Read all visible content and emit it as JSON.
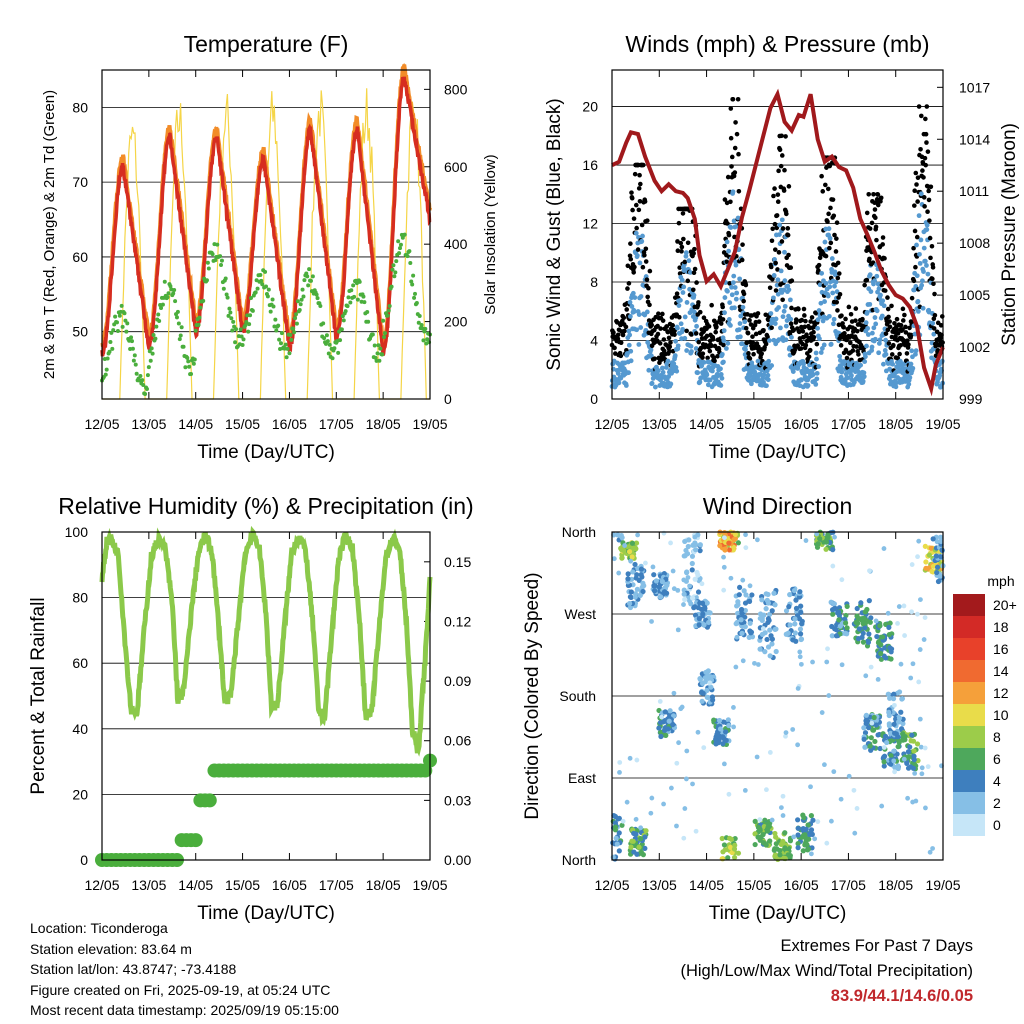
{
  "chart_data": [
    {
      "id": "temperature",
      "type": "line",
      "title": "Temperature (F)",
      "xlabel": "Time (Day/UTC)",
      "ylabel": "2m & 9m T (Red, Orange) & 2m Td (Green)",
      "ylabel_right": "Solar Insolation (Yellow)",
      "x_ticks": [
        "12/05",
        "13/05",
        "14/05",
        "15/05",
        "16/05",
        "17/05",
        "18/05",
        "19/05"
      ],
      "ylim": [
        41,
        85
      ],
      "y_ticks": [
        50,
        60,
        70,
        80
      ],
      "ylim_right": [
        0,
        850
      ],
      "y_ticks_right": [
        0,
        200,
        400,
        600,
        800
      ],
      "grid": true,
      "daily_t2m": [
        {
          "day": "12/05",
          "min": 47,
          "max": 72
        },
        {
          "day": "13/05",
          "min": 48,
          "max": 76
        },
        {
          "day": "14/05",
          "min": 50,
          "max": 76
        },
        {
          "day": "15/05",
          "min": 50,
          "max": 73
        },
        {
          "day": "16/05",
          "min": 48,
          "max": 77
        },
        {
          "day": "17/05",
          "min": 49,
          "max": 77
        },
        {
          "day": "18/05",
          "min": 47,
          "max": 84
        }
      ],
      "daily_dewpoint": [
        {
          "day": "12/05",
          "min": 43,
          "max": 52
        },
        {
          "day": "13/05",
          "min": 45,
          "max": 56
        },
        {
          "day": "14/05",
          "min": 49,
          "max": 61
        },
        {
          "day": "15/05",
          "min": 48,
          "max": 57
        },
        {
          "day": "16/05",
          "min": 47,
          "max": 57
        },
        {
          "day": "17/05",
          "min": 47,
          "max": 56
        },
        {
          "day": "18/05",
          "min": 49,
          "max": 62
        }
      ],
      "solar_daily_peak": [
        750,
        800,
        810,
        815,
        820,
        820,
        825
      ],
      "series": [
        {
          "name": "2m T",
          "color": "#d62d20"
        },
        {
          "name": "9m T",
          "color": "#f28c28"
        },
        {
          "name": "2m Td",
          "color": "#4aae3c"
        },
        {
          "name": "Solar Insolation",
          "color": "#f5d547"
        }
      ]
    },
    {
      "id": "winds",
      "type": "scatter",
      "title": "Winds (mph) & Pressure (mb)",
      "xlabel": "Time (Day/UTC)",
      "ylabel": "Sonic Wind & Gust (Blue, Black)",
      "ylabel_right": "Station Pressure (Maroon)",
      "x_ticks": [
        "12/05",
        "13/05",
        "14/05",
        "15/05",
        "16/05",
        "17/05",
        "18/05",
        "19/05"
      ],
      "ylim": [
        0,
        22.5
      ],
      "y_ticks": [
        0,
        4,
        8,
        12,
        16,
        20
      ],
      "ylim_right": [
        999,
        1018
      ],
      "y_ticks_right": [
        999,
        1002,
        1005,
        1008,
        1011,
        1014,
        1017
      ],
      "grid": true,
      "pressure": {
        "x_days": [
          0,
          0.15,
          0.3,
          0.4,
          0.55,
          0.7,
          0.9,
          1.05,
          1.2,
          1.35,
          1.5,
          1.6,
          1.75,
          1.85,
          2.0,
          2.15,
          2.3,
          2.45,
          2.6,
          2.75,
          2.9,
          3.05,
          3.2,
          3.35,
          3.5,
          3.65,
          3.8,
          3.95,
          4.05,
          4.2,
          4.35,
          4.5,
          4.65,
          4.8,
          4.95,
          5.1,
          5.25,
          5.4,
          5.55,
          5.7,
          5.85,
          6.0,
          6.15,
          6.3,
          6.45,
          6.6,
          6.75,
          6.85,
          7.0
        ],
        "values": [
          1012.5,
          1012.7,
          1013.8,
          1014.4,
          1014.3,
          1013.0,
          1011.6,
          1011.0,
          1011.4,
          1011.0,
          1010.9,
          1010.6,
          1009.4,
          1007.3,
          1005.8,
          1006.2,
          1005.5,
          1006.5,
          1007.5,
          1009.5,
          1011.0,
          1012.6,
          1014.2,
          1015.8,
          1016.6,
          1015.0,
          1014.5,
          1015.4,
          1015.3,
          1016.6,
          1014.0,
          1012.7,
          1013.0,
          1012.4,
          1012.2,
          1011.2,
          1009.4,
          1008.5,
          1007.5,
          1006.4,
          1005.6,
          1005.0,
          1004.8,
          1004.3,
          1003.2,
          1000.8,
          999.6,
          1001.0,
          1002.0
        ],
        "color": "#a0191c"
      },
      "daily_gust_max": [
        16,
        13,
        20.5,
        18,
        16.5,
        14,
        20
      ],
      "series": [
        {
          "name": "Sonic Wind",
          "color": "#5599d0"
        },
        {
          "name": "Gust",
          "color": "#000000"
        },
        {
          "name": "Station Pressure",
          "color": "#a0191c"
        }
      ]
    },
    {
      "id": "humidity",
      "type": "line",
      "title": "Relative Humidity (%) & Precipitation (in)",
      "xlabel": "Time (Day/UTC)",
      "ylabel": "Percent & Total Rainfall",
      "x_ticks": [
        "12/05",
        "13/05",
        "14/05",
        "15/05",
        "16/05",
        "17/05",
        "18/05",
        "19/05"
      ],
      "ylim": [
        0,
        100
      ],
      "y_ticks": [
        0,
        20,
        40,
        60,
        80,
        100
      ],
      "ylim_right": [
        0,
        0.165
      ],
      "y_ticks_right": [
        "0.00",
        "0.03",
        "0.06",
        "0.09",
        "0.12",
        "0.15"
      ],
      "grid": true,
      "rh": {
        "x_days": [
          0,
          0.1,
          0.2,
          0.35,
          0.5,
          0.62,
          0.75,
          0.9,
          1.05,
          1.2,
          1.35,
          1.5,
          1.62,
          1.75,
          1.9,
          2.05,
          2.2,
          2.35,
          2.5,
          2.62,
          2.75,
          2.9,
          3.05,
          3.2,
          3.35,
          3.5,
          3.62,
          3.75,
          3.9,
          4.05,
          4.2,
          4.35,
          4.5,
          4.62,
          4.75,
          4.9,
          5.05,
          5.2,
          5.35,
          5.5,
          5.62,
          5.75,
          5.9,
          6.05,
          6.2,
          6.35,
          6.5,
          6.62,
          6.75,
          6.9,
          7.0
        ],
        "values": [
          86,
          97,
          98,
          93,
          65,
          46,
          45,
          70,
          92,
          98,
          95,
          78,
          48,
          52,
          75,
          93,
          99,
          94,
          70,
          48,
          50,
          72,
          93,
          99,
          96,
          75,
          46,
          48,
          72,
          94,
          99,
          94,
          72,
          46,
          43,
          68,
          92,
          99,
          95,
          72,
          45,
          44,
          68,
          92,
          98,
          95,
          72,
          40,
          33,
          62,
          86
        ],
        "color": "#8bc94a"
      },
      "precip_total": {
        "x_days": [
          0,
          1.6,
          1.62,
          2.0,
          2.02,
          2.35,
          2.38,
          6.99
        ],
        "values": [
          0.0,
          0.0,
          0.01,
          0.01,
          0.03,
          0.03,
          0.045,
          0.05
        ],
        "color": "#4aae3c"
      }
    },
    {
      "id": "direction",
      "type": "scatter",
      "title": "Wind Direction",
      "xlabel": "Time (Day/UTC)",
      "ylabel": "Direction (Colored By Speed)",
      "x_ticks": [
        "12/05",
        "13/05",
        "14/05",
        "15/05",
        "16/05",
        "17/05",
        "18/05",
        "19/05"
      ],
      "y_ticks": [
        "North",
        "East",
        "South",
        "West",
        "North"
      ],
      "ylim": [
        0,
        360
      ],
      "grid": true,
      "colorbar": {
        "unit": "mph",
        "labels": [
          "20+",
          "18",
          "16",
          "14",
          "12",
          "10",
          "8",
          "6",
          "4",
          "2",
          "0"
        ],
        "colors": [
          "#a31a1c",
          "#d32a26",
          "#e8412a",
          "#f06a30",
          "#f5a03a",
          "#e9dc4a",
          "#9ccc4a",
          "#4ea85c",
          "#3e7fbe",
          "#86bfe6",
          "#c6e6f8"
        ]
      }
    }
  ],
  "info": {
    "location": "Location: Ticonderoga",
    "elevation": "Station elevation: 83.64 m",
    "latlon": "Station lat/lon: 43.8747; -73.4188",
    "created": "Figure created on Fri, 2025-09-19, at 05:24 UTC",
    "timestamp": "Most recent data timestamp: 2025/09/19 05:15:00"
  },
  "extremes": {
    "title": "Extremes For Past 7 Days",
    "subtitle": "(High/Low/Max Wind/Total Precipitation)",
    "values": "83.9/44.1/14.6/0.05",
    "color": "#c0282c"
  }
}
